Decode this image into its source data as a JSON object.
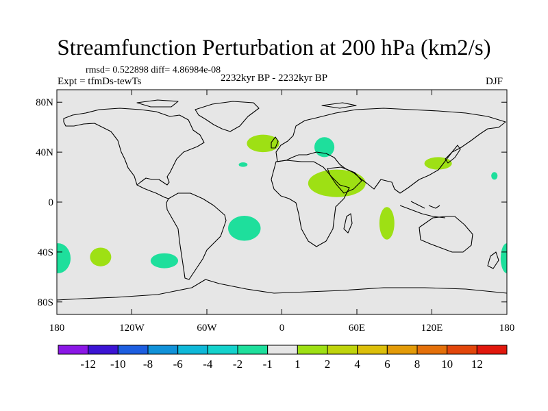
{
  "title": "Streamfunction Perturbation at 200 hPa (km2/s)",
  "stats": "rmsd= 0.522898 diff= 4.86984e-08",
  "experiment": "Expt = tfmDs-tewTs",
  "period": "2232kyr BP - 2232kyr BP",
  "season": "DJF",
  "chart_data": {
    "type": "map",
    "projection": "cylindrical-equidistant",
    "lat_ticks": [
      {
        "value": 80,
        "label": "80N"
      },
      {
        "value": 40,
        "label": "40N"
      },
      {
        "value": 0,
        "label": "0"
      },
      {
        "value": -40,
        "label": "40S"
      },
      {
        "value": -80,
        "label": "80S"
      }
    ],
    "lon_ticks": [
      {
        "value": -180,
        "label": "180"
      },
      {
        "value": -120,
        "label": "120W"
      },
      {
        "value": -60,
        "label": "60W"
      },
      {
        "value": 0,
        "label": "0"
      },
      {
        "value": 60,
        "label": "60E"
      },
      {
        "value": 120,
        "label": "120E"
      },
      {
        "value": 180,
        "label": "180"
      }
    ],
    "xlim": [
      -180,
      180
    ],
    "ylim": [
      -90,
      90
    ],
    "colorbar": {
      "labels": [
        "-12",
        "-10",
        "-8",
        "-6",
        "-4",
        "-2",
        "-1",
        "1",
        "2",
        "4",
        "6",
        "8",
        "10",
        "12"
      ],
      "colors": [
        "#8b17e6",
        "#3c14d4",
        "#1d5ee0",
        "#1192d9",
        "#0fb8d8",
        "#14d2cc",
        "#1edf9c",
        "#e6e6e6",
        "#9ee014",
        "#bfd40c",
        "#dcbf0a",
        "#e39b08",
        "#e4700a",
        "#e2460b",
        "#e1180d"
      ]
    },
    "anomalies": [
      {
        "name": "mediterranean-positive",
        "lon": -15,
        "lat": 47,
        "rx": 13,
        "ry": 7,
        "category": "1 to 2"
      },
      {
        "name": "atlantic-small-negative",
        "lon": -31,
        "lat": 30,
        "rx": 3.5,
        "ry": 1.8,
        "category": "-2 to -1"
      },
      {
        "name": "turkey-negative",
        "lon": 34,
        "lat": 44,
        "rx": 8,
        "ry": 8,
        "category": "-2 to -1"
      },
      {
        "name": "arabia-positive",
        "lon": 44,
        "lat": 15,
        "rx": 23,
        "ry": 11,
        "category": "1 to 2"
      },
      {
        "name": "korea-positive",
        "lon": 125,
        "lat": 31,
        "rx": 11,
        "ry": 5,
        "category": "1 to 2"
      },
      {
        "name": "pacific-small-negative",
        "lon": 170,
        "lat": 21,
        "rx": 2.5,
        "ry": 3,
        "category": "-2 to -1"
      },
      {
        "name": "south-atlantic-negative",
        "lon": -30,
        "lat": -21,
        "rx": 13,
        "ry": 10,
        "category": "-2 to -1"
      },
      {
        "name": "indian-ocean-positive",
        "lon": 84,
        "lat": -17,
        "rx": 6,
        "ry": 13,
        "category": "1 to 2"
      },
      {
        "name": "south-pacific-positive",
        "lon": -145,
        "lat": -44,
        "rx": 8.5,
        "ry": 7.5,
        "category": "1 to 2"
      },
      {
        "name": "south-pacific-negative",
        "lon": -94,
        "lat": -47,
        "rx": 11,
        "ry": 6,
        "category": "-2 to -1"
      },
      {
        "name": "dateline-west-negative",
        "lon": -179,
        "lat": -45,
        "rx": 10,
        "ry": 12,
        "category": "-2 to -1"
      },
      {
        "name": "dateline-east-negative",
        "lon": 180,
        "lat": -45,
        "rx": 5,
        "ry": 12,
        "category": "-2 to -1"
      }
    ]
  }
}
